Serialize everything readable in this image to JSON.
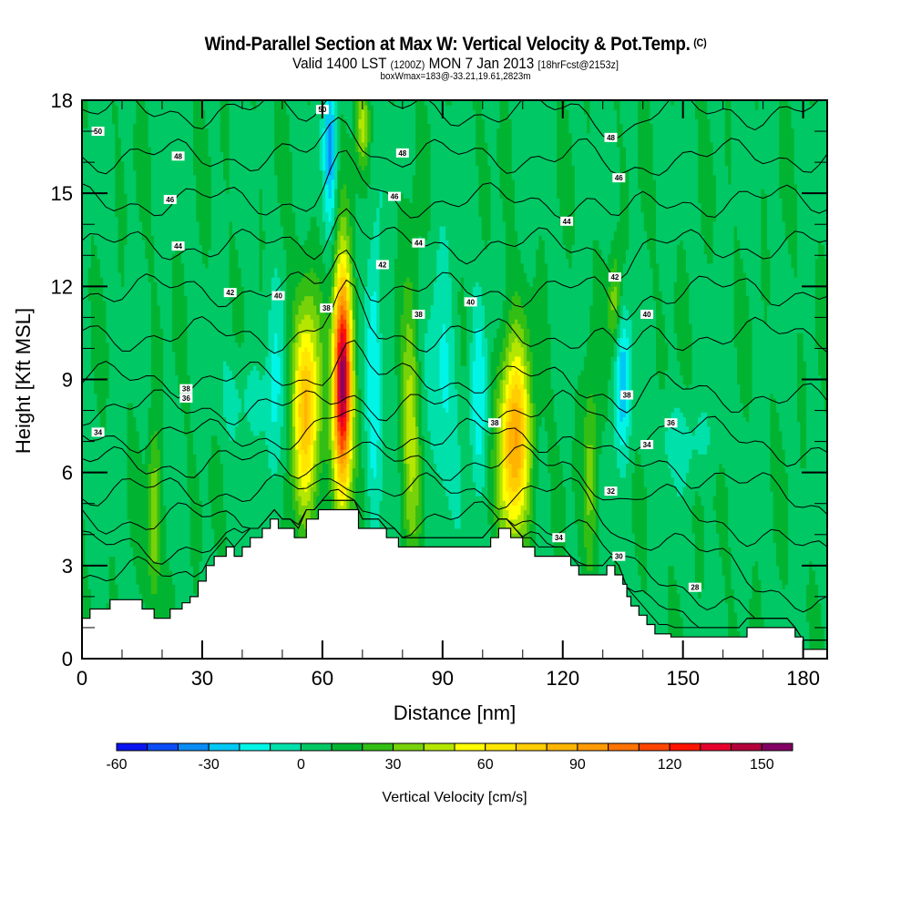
{
  "title": "Wind-Parallel Section at Max W: Vertical Velocity & Pot.Temp.",
  "copyright": "(C)",
  "subtitle_main_1": "Valid 1400 LST",
  "subtitle_utc": "(1200Z)",
  "subtitle_main_2": "MON 7 Jan 2013",
  "subtitle_fcst": "[18hrFcst@2153z]",
  "subtitle2": "boxWmax=183@-33.21,19.61,2823m",
  "chart_data": {
    "type": "heatmap",
    "title": "Wind-Parallel Section at Max W: Vertical Velocity & Pot.Temp.",
    "xlabel": "Distance [nm]",
    "ylabel": "Height [Kft MSL]",
    "xlim": [
      0,
      186
    ],
    "ylim": [
      0,
      18
    ],
    "xticks": [
      "0",
      "30",
      "60",
      "90",
      "120",
      "150",
      "180"
    ],
    "xtick_values": [
      0,
      30,
      60,
      90,
      120,
      150,
      180
    ],
    "yticks": [
      "0",
      "3",
      "6",
      "9",
      "12",
      "15",
      "18"
    ],
    "ytick_values": [
      0,
      3,
      6,
      9,
      12,
      15,
      18
    ],
    "colorbar": {
      "title": "Vertical Velocity [cm/s]",
      "bounds": [
        -60,
        160
      ],
      "step": 10,
      "tick_labels": [
        "-60",
        "-30",
        "0",
        "30",
        "60",
        "90",
        "120",
        "150"
      ],
      "tick_values": [
        -60,
        -30,
        0,
        30,
        60,
        90,
        120,
        150
      ],
      "colors": [
        "#0a14f0",
        "#0a4cf5",
        "#0a8cf5",
        "#00c8f5",
        "#00f5e6",
        "#00e0aa",
        "#00c864",
        "#00b432",
        "#32be14",
        "#78d20a",
        "#b4e600",
        "#ffff00",
        "#ffe600",
        "#ffcd00",
        "#ffb400",
        "#ff9b00",
        "#ff7300",
        "#ff4600",
        "#ff1400",
        "#e6002d",
        "#b4003c",
        "#820064"
      ]
    },
    "w_features": [
      {
        "name": "updraft-1",
        "x_nm": 56,
        "z_kft": 8.0,
        "peak_cms": 75,
        "half_width_nm": 3.2,
        "half_height_kft": 3.2
      },
      {
        "name": "updraft-2-max",
        "x_nm": 65,
        "z_kft": 9.0,
        "peak_cms": 150,
        "half_width_nm": 2.2,
        "half_height_kft": 3.4
      },
      {
        "name": "updraft-3",
        "x_nm": 108,
        "z_kft": 7.0,
        "peak_cms": 85,
        "half_width_nm": 3.6,
        "half_height_kft": 3.0
      },
      {
        "name": "updraft-4",
        "x_nm": 82,
        "z_kft": 7.5,
        "peak_cms": 35,
        "half_width_nm": 2.2,
        "half_height_kft": 4.5
      },
      {
        "name": "updraft-5",
        "x_nm": 127,
        "z_kft": 6.0,
        "peak_cms": 28,
        "half_width_nm": 1.8,
        "half_height_kft": 3.0
      },
      {
        "name": "updraft-6",
        "x_nm": 18,
        "z_kft": 4.5,
        "peak_cms": 35,
        "half_width_nm": 1.5,
        "half_height_kft": 2.5
      },
      {
        "name": "updraft-7",
        "x_nm": 133,
        "z_kft": 11.5,
        "peak_cms": 30,
        "half_width_nm": 1.5,
        "half_height_kft": 1.5
      },
      {
        "name": "updraft-8",
        "x_nm": 70,
        "z_kft": 17.2,
        "peak_cms": 35,
        "half_width_nm": 1.5,
        "half_height_kft": 1.2
      },
      {
        "name": "downdraft-1",
        "x_nm": 73,
        "z_kft": 9.5,
        "peak_cms": -30,
        "half_width_nm": 1.8,
        "half_height_kft": 4.0
      },
      {
        "name": "downdraft-2",
        "x_nm": 62,
        "z_kft": 16.5,
        "peak_cms": -40,
        "half_width_nm": 1.5,
        "half_height_kft": 2.5
      },
      {
        "name": "downdraft-3",
        "x_nm": 99,
        "z_kft": 8.5,
        "peak_cms": -25,
        "half_width_nm": 2.0,
        "half_height_kft": 3.0
      },
      {
        "name": "downdraft-4",
        "x_nm": 135,
        "z_kft": 9.0,
        "peak_cms": -35,
        "half_width_nm": 2.0,
        "half_height_kft": 2.2
      },
      {
        "name": "downdraft-5",
        "x_nm": 48,
        "z_kft": 8.0,
        "peak_cms": -20,
        "half_width_nm": 2.0,
        "half_height_kft": 3.5
      },
      {
        "name": "downdraft-6",
        "x_nm": 90,
        "z_kft": 9.0,
        "peak_cms": -20,
        "half_width_nm": 3.5,
        "half_height_kft": 4.0
      },
      {
        "name": "downdraft-7",
        "x_nm": 40,
        "z_kft": 8.5,
        "peak_cms": -12,
        "half_width_nm": 6.0,
        "half_height_kft": 1.5
      },
      {
        "name": "downdraft-8",
        "x_nm": 150,
        "z_kft": 7.0,
        "peak_cms": -12,
        "half_width_nm": 9.0,
        "half_height_kft": 1.2
      }
    ],
    "terrain_kft": {
      "x_nm": [
        0,
        2,
        7,
        15,
        18,
        22,
        25,
        27,
        29,
        31,
        33,
        36,
        38,
        40,
        42,
        45,
        47,
        49,
        51,
        53,
        56,
        59,
        61,
        65,
        69,
        73,
        76,
        79,
        89,
        100,
        102,
        104,
        107,
        110,
        113,
        120,
        122,
        124,
        127,
        129,
        131,
        133,
        135,
        136,
        137,
        139,
        141,
        143,
        147,
        157,
        164,
        166,
        172,
        178,
        180,
        186
      ],
      "z": [
        1.3,
        1.6,
        1.9,
        1.6,
        1.3,
        1.6,
        1.8,
        2.0,
        2.5,
        3.0,
        3.3,
        3.6,
        3.3,
        3.6,
        3.9,
        4.2,
        4.5,
        4.2,
        4.2,
        3.9,
        4.5,
        4.8,
        4.8,
        4.8,
        4.2,
        4.2,
        3.9,
        3.6,
        3.6,
        3.6,
        3.9,
        4.2,
        3.9,
        3.6,
        3.3,
        3.3,
        3.0,
        2.7,
        2.7,
        2.7,
        3.0,
        2.7,
        2.4,
        2.0,
        1.7,
        1.4,
        1.1,
        0.8,
        0.7,
        0.7,
        0.7,
        1.0,
        1.0,
        0.7,
        0.3,
        0.3
      ]
    },
    "contour_variable": "Potential Temperature",
    "contour_levels": [
      24,
      26,
      28,
      30,
      32,
      34,
      36,
      38,
      40,
      42,
      44,
      46,
      48,
      50
    ],
    "contour_labels": [
      {
        "text": "50",
        "x_nm": 4,
        "z_kft": 17.0
      },
      {
        "text": "48",
        "x_nm": 24,
        "z_kft": 16.2
      },
      {
        "text": "46",
        "x_nm": 22,
        "z_kft": 14.8
      },
      {
        "text": "44",
        "x_nm": 24,
        "z_kft": 13.3
      },
      {
        "text": "42",
        "x_nm": 37,
        "z_kft": 11.8
      },
      {
        "text": "40",
        "x_nm": 49,
        "z_kft": 11.7
      },
      {
        "text": "38",
        "x_nm": 61,
        "z_kft": 11.3
      },
      {
        "text": "50",
        "x_nm": 60,
        "z_kft": 17.7
      },
      {
        "text": "48",
        "x_nm": 80,
        "z_kft": 16.3
      },
      {
        "text": "46",
        "x_nm": 78,
        "z_kft": 14.9
      },
      {
        "text": "44",
        "x_nm": 84,
        "z_kft": 13.4
      },
      {
        "text": "42",
        "x_nm": 75,
        "z_kft": 12.7
      },
      {
        "text": "40",
        "x_nm": 97,
        "z_kft": 11.5
      },
      {
        "text": "38",
        "x_nm": 84,
        "z_kft": 11.1
      },
      {
        "text": "48",
        "x_nm": 132,
        "z_kft": 16.8
      },
      {
        "text": "46",
        "x_nm": 134,
        "z_kft": 15.5
      },
      {
        "text": "44",
        "x_nm": 121,
        "z_kft": 14.1
      },
      {
        "text": "42",
        "x_nm": 133,
        "z_kft": 12.3
      },
      {
        "text": "40",
        "x_nm": 141,
        "z_kft": 11.1
      },
      {
        "text": "38",
        "x_nm": 26,
        "z_kft": 8.7
      },
      {
        "text": "36",
        "x_nm": 26,
        "z_kft": 8.4
      },
      {
        "text": "34",
        "x_nm": 4,
        "z_kft": 7.3
      },
      {
        "text": "38",
        "x_nm": 103,
        "z_kft": 7.6
      },
      {
        "text": "38",
        "x_nm": 136,
        "z_kft": 8.5
      },
      {
        "text": "36",
        "x_nm": 147,
        "z_kft": 7.6
      },
      {
        "text": "34",
        "x_nm": 141,
        "z_kft": 6.9
      },
      {
        "text": "32",
        "x_nm": 132,
        "z_kft": 5.4
      },
      {
        "text": "34",
        "x_nm": 119,
        "z_kft": 3.9
      },
      {
        "text": "30",
        "x_nm": 134,
        "z_kft": 3.3
      },
      {
        "text": "28",
        "x_nm": 153,
        "z_kft": 2.3
      }
    ]
  }
}
